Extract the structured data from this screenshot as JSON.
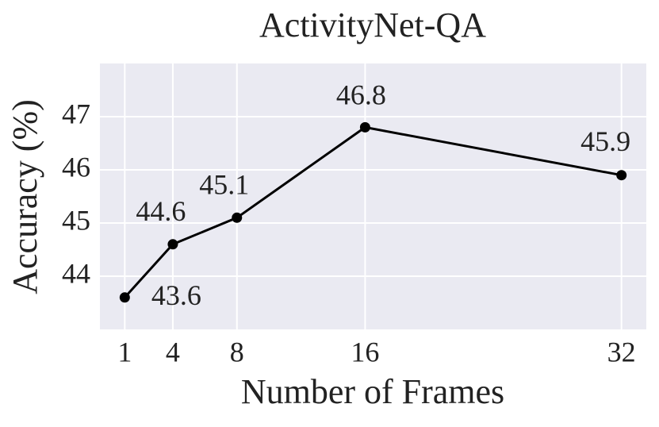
{
  "chart_data": {
    "type": "line",
    "title": "ActivityNet-QA",
    "x_label": "Number of Frames",
    "y_label": "Accuracy (%)",
    "x": [
      1,
      4,
      8,
      16,
      32
    ],
    "values": [
      43.6,
      44.6,
      45.1,
      46.8,
      45.9
    ],
    "color": "#000000",
    "xlim": [
      -0.55,
      33.55
    ],
    "xticks": [
      1,
      4,
      8,
      16,
      32
    ],
    "ylim": [
      43,
      48
    ],
    "yticks": [
      44,
      45,
      46,
      47
    ],
    "grid": true
  }
}
